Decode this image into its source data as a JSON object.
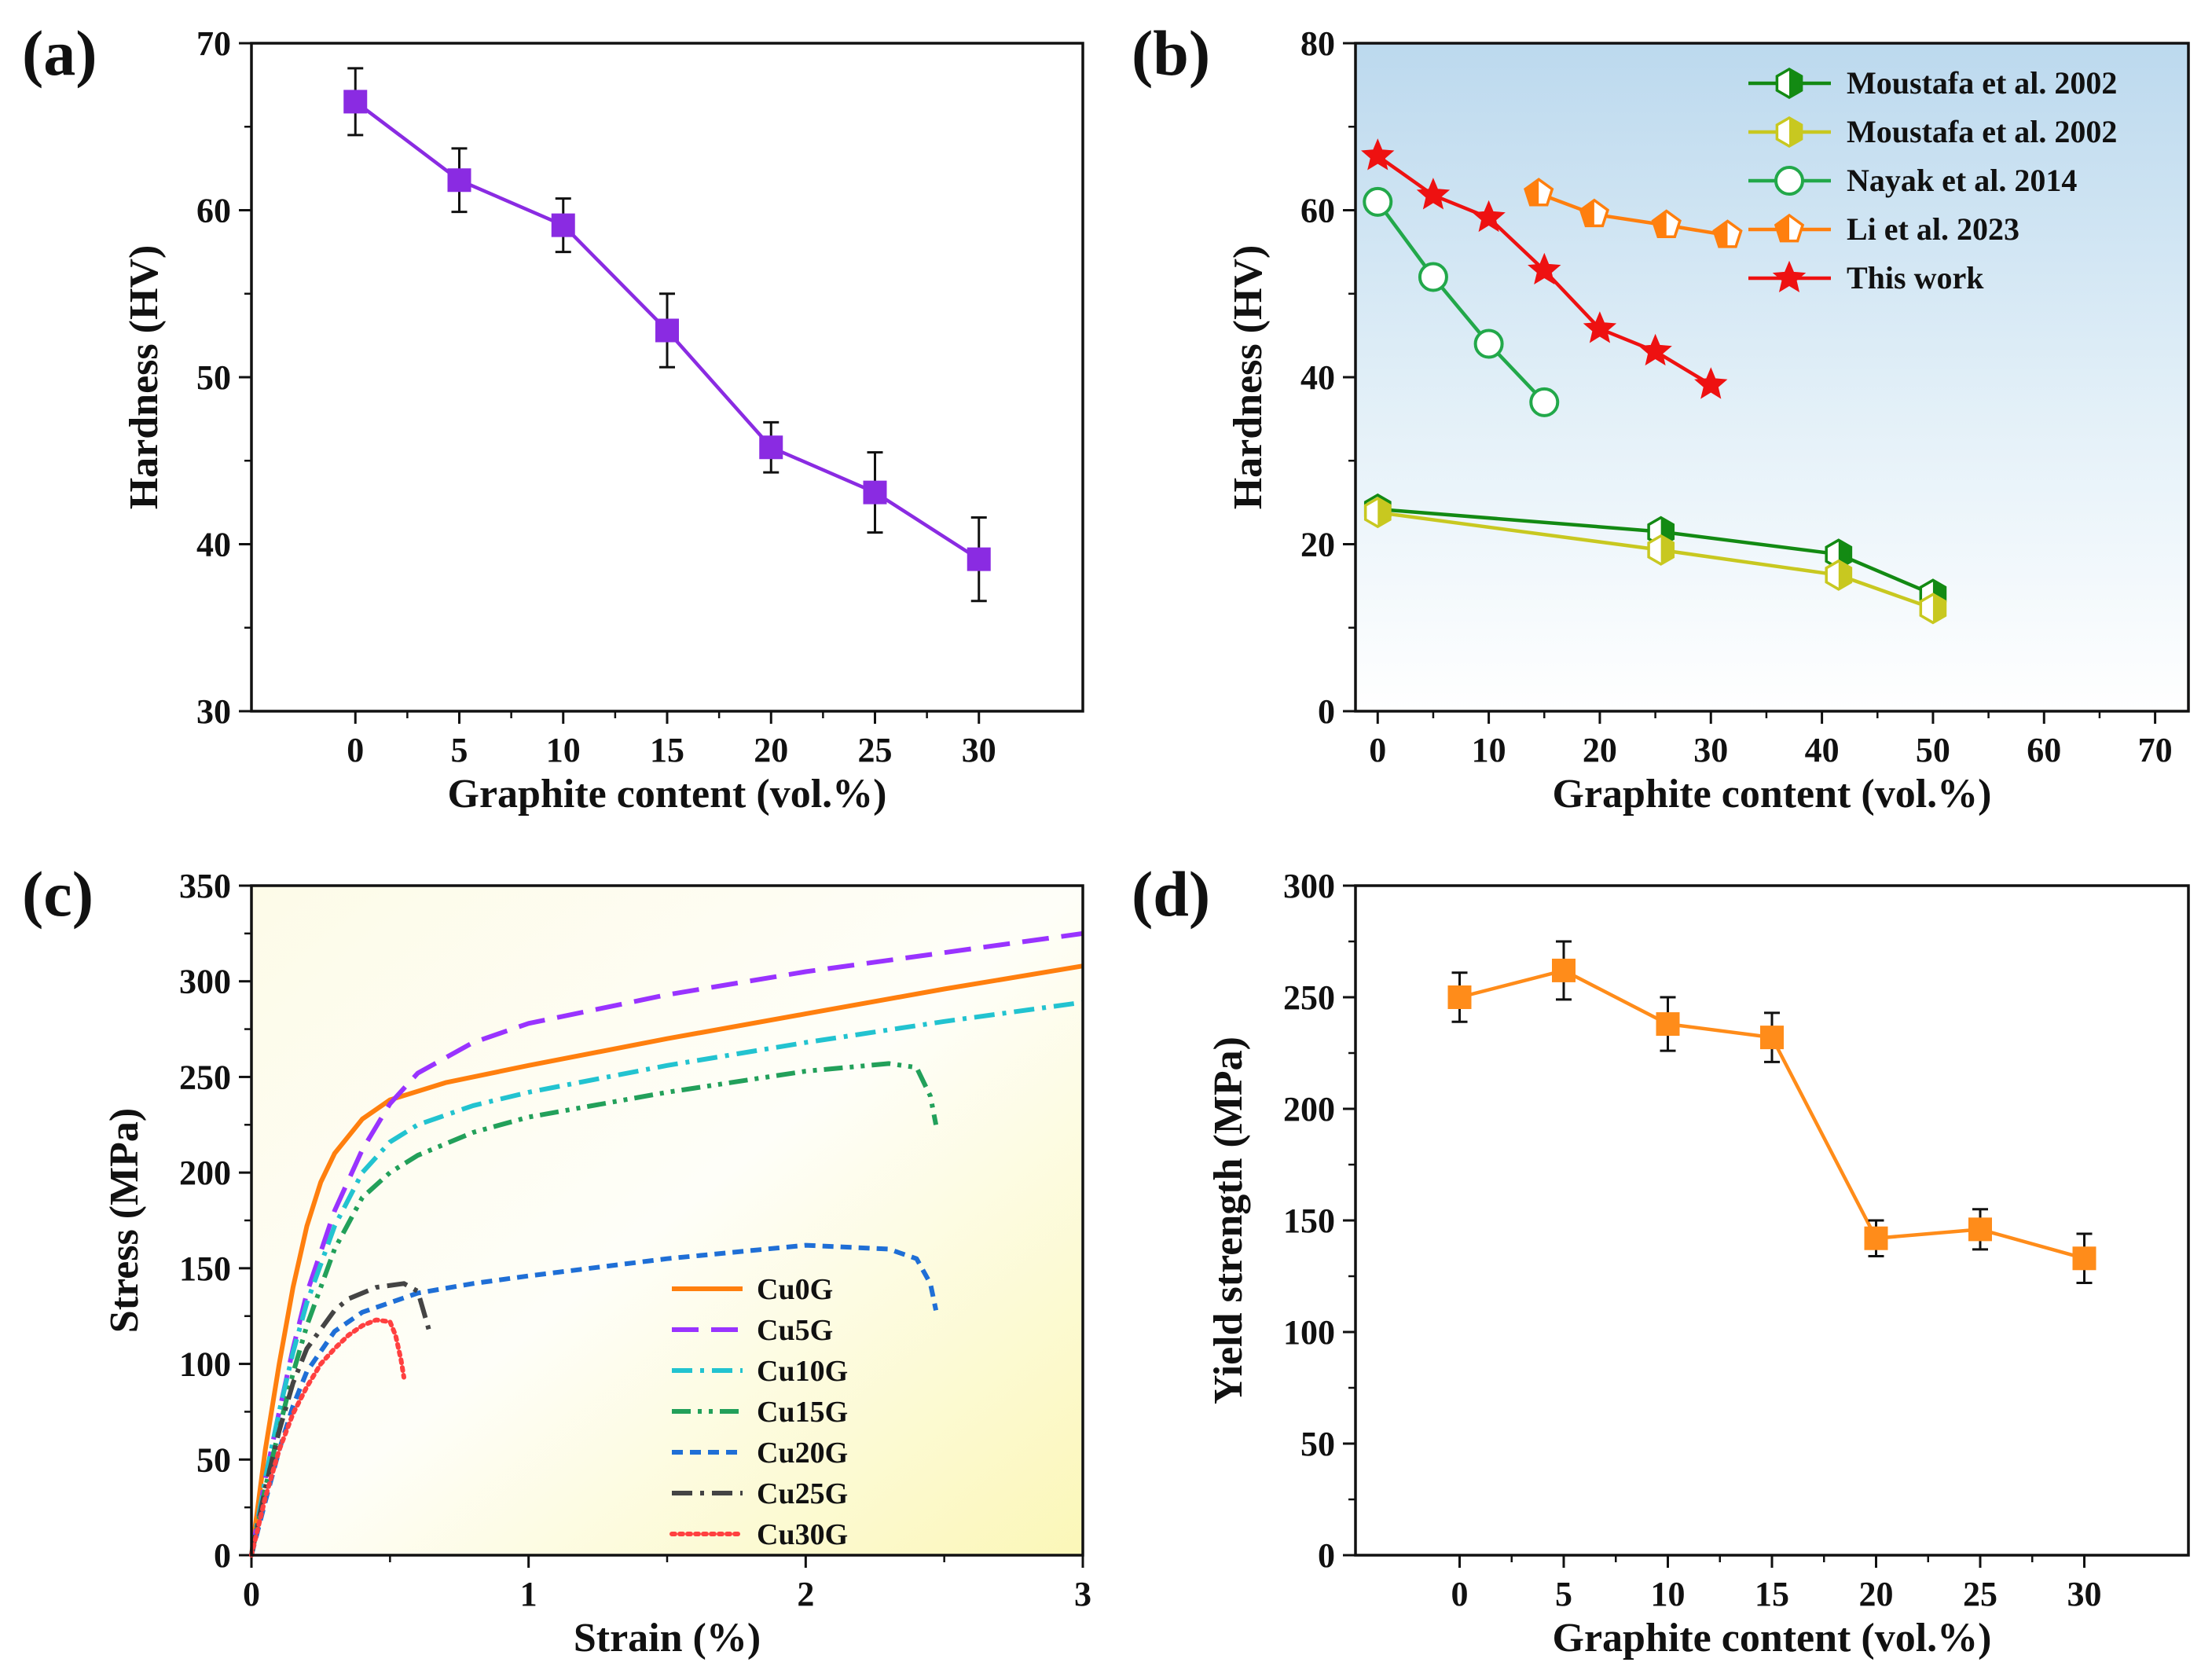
{
  "chart_data": [
    {
      "panel": "(a)",
      "type": "line",
      "xlabel": "Graphite content (vol.%)",
      "ylabel": "Hardness (HV)",
      "xlim": [
        -5,
        35
      ],
      "ylim": [
        30,
        70
      ],
      "xticks": [
        0,
        5,
        10,
        15,
        20,
        25,
        30
      ],
      "yticks": [
        30,
        40,
        50,
        60,
        70
      ],
      "series": [
        {
          "name": "Hardness",
          "color": "#8a2be2",
          "marker": "square",
          "x": [
            0,
            5,
            10,
            15,
            20,
            25,
            30
          ],
          "y": [
            66.5,
            61.8,
            59.1,
            52.8,
            45.8,
            43.1,
            39.1
          ],
          "err": [
            2.0,
            1.9,
            1.6,
            2.2,
            1.5,
            2.4,
            2.5
          ]
        }
      ]
    },
    {
      "panel": "(b)",
      "type": "line",
      "xlabel": "Graphite content (vol.%)",
      "ylabel": "Hardness (HV)",
      "xlim": [
        -2,
        73
      ],
      "ylim": [
        0,
        80
      ],
      "xticks": [
        0,
        10,
        20,
        30,
        40,
        50,
        60,
        70
      ],
      "yticks": [
        0,
        20,
        40,
        60,
        80
      ],
      "background": "sky-gradient",
      "legend_position": "top-right",
      "series": [
        {
          "name": "Moustafa et al. 2002",
          "color": "#138a13",
          "marker": "hex-half",
          "x": [
            0,
            25.5,
            41.5,
            50
          ],
          "y": [
            24.2,
            21.5,
            18.8,
            14.0
          ]
        },
        {
          "name": "Moustafa et al. 2002",
          "color": "#c8c820",
          "marker": "hex-half",
          "x": [
            0,
            25.5,
            41.5,
            50
          ],
          "y": [
            23.8,
            19.3,
            16.3,
            12.3
          ]
        },
        {
          "name": "Nayak et al. 2014",
          "color": "#22a84a",
          "marker": "circle-open",
          "x": [
            0,
            5,
            10,
            15
          ],
          "y": [
            61.0,
            52.0,
            44.0,
            37.0
          ]
        },
        {
          "name": "Li et al. 2023",
          "color": "#ff7f0e",
          "marker": "pentagon-half",
          "x": [
            14.5,
            19.5,
            26,
            31.5
          ],
          "y": [
            62.0,
            59.5,
            58.2,
            57.0
          ]
        },
        {
          "name": "This work",
          "color": "#ee1111",
          "marker": "star",
          "x": [
            0,
            5,
            10,
            15,
            20,
            25,
            30
          ],
          "y": [
            66.5,
            61.8,
            59.1,
            52.8,
            45.8,
            43.1,
            39.1
          ]
        }
      ]
    },
    {
      "panel": "(c)",
      "type": "line",
      "xlabel": "Strain (%)",
      "ylabel": "Stress (MPa)",
      "xlim": [
        0,
        3
      ],
      "ylim": [
        0,
        350
      ],
      "xticks": [
        0,
        1,
        2,
        3
      ],
      "yticks": [
        0,
        50,
        100,
        150,
        200,
        250,
        300,
        350
      ],
      "background": "yellow-gradient",
      "legend_position": "bottom-center",
      "series": [
        {
          "name": "Cu0G",
          "color": "#ff7f0e",
          "dash": "solid",
          "x": [
            0,
            0.05,
            0.1,
            0.15,
            0.2,
            0.25,
            0.3,
            0.4,
            0.5,
            0.7,
            1.0,
            1.5,
            2.0,
            2.5,
            3.0
          ],
          "y": [
            0,
            55,
            100,
            140,
            172,
            195,
            210,
            228,
            238,
            247,
            256,
            270,
            283,
            296,
            308
          ]
        },
        {
          "name": "Cu5G",
          "color": "#9933ff",
          "dash": "long-dash",
          "x": [
            0,
            0.05,
            0.1,
            0.15,
            0.2,
            0.3,
            0.4,
            0.5,
            0.6,
            0.8,
            1.0,
            1.5,
            2.0,
            2.5,
            3.0
          ],
          "y": [
            0,
            40,
            75,
            108,
            137,
            180,
            212,
            236,
            252,
            268,
            278,
            293,
            305,
            315,
            325
          ]
        },
        {
          "name": "Cu10G",
          "color": "#22c3d0",
          "dash": "dash-dot",
          "x": [
            0,
            0.05,
            0.1,
            0.15,
            0.2,
            0.3,
            0.4,
            0.5,
            0.6,
            0.8,
            1.0,
            1.5,
            2.0,
            2.5,
            3.0
          ],
          "y": [
            0,
            40,
            75,
            106,
            132,
            172,
            200,
            216,
            225,
            235,
            242,
            256,
            268,
            279,
            289
          ]
        },
        {
          "name": "Cu15G",
          "color": "#22a05a",
          "dash": "dash-dot-dot",
          "x": [
            0,
            0.05,
            0.1,
            0.15,
            0.2,
            0.3,
            0.4,
            0.5,
            0.6,
            0.8,
            1.0,
            1.5,
            2.0,
            2.3,
            2.4,
            2.45,
            2.47
          ],
          "y": [
            0,
            35,
            66,
            95,
            120,
            160,
            187,
            200,
            209,
            221,
            229,
            242,
            253,
            257,
            255,
            240,
            225
          ]
        },
        {
          "name": "Cu20G",
          "color": "#1f6fd6",
          "dash": "short-dash",
          "x": [
            0,
            0.05,
            0.1,
            0.15,
            0.2,
            0.3,
            0.4,
            0.5,
            0.6,
            0.8,
            1.0,
            1.5,
            2.0,
            2.3,
            2.4,
            2.45,
            2.47
          ],
          "y": [
            0,
            28,
            55,
            78,
            96,
            117,
            127,
            132,
            137,
            142,
            146,
            155,
            162,
            160,
            155,
            142,
            128
          ]
        },
        {
          "name": "Cu25G",
          "color": "#444444",
          "dash": "dash-dot",
          "x": [
            0,
            0.05,
            0.1,
            0.15,
            0.2,
            0.3,
            0.35,
            0.45,
            0.55,
            0.6,
            0.62,
            0.64
          ],
          "y": [
            0,
            35,
            65,
            90,
            108,
            128,
            134,
            140,
            142,
            138,
            128,
            118
          ]
        },
        {
          "name": "Cu30G",
          "color": "#ff4040",
          "dash": "dotted",
          "x": [
            0,
            0.05,
            0.1,
            0.15,
            0.2,
            0.25,
            0.3,
            0.35,
            0.4,
            0.45,
            0.5,
            0.52,
            0.54,
            0.55
          ],
          "y": [
            0,
            30,
            55,
            74,
            88,
            100,
            108,
            115,
            120,
            123,
            122,
            115,
            102,
            93
          ]
        }
      ]
    },
    {
      "panel": "(d)",
      "type": "line",
      "xlabel": "Graphite content (vol.%)",
      "ylabel": "Yield strength (MPa)",
      "xlim": [
        -5,
        35
      ],
      "ylim": [
        0,
        300
      ],
      "xticks": [
        0,
        5,
        10,
        15,
        20,
        25,
        30
      ],
      "yticks": [
        0,
        50,
        100,
        150,
        200,
        250,
        300
      ],
      "series": [
        {
          "name": "Yield strength",
          "color": "#ff8c1a",
          "marker": "square",
          "x": [
            0,
            5,
            10,
            15,
            20,
            25,
            30
          ],
          "y": [
            250,
            262,
            238,
            232,
            142,
            146,
            133
          ],
          "err": [
            11,
            13,
            12,
            11,
            8,
            9,
            11
          ]
        }
      ]
    }
  ]
}
